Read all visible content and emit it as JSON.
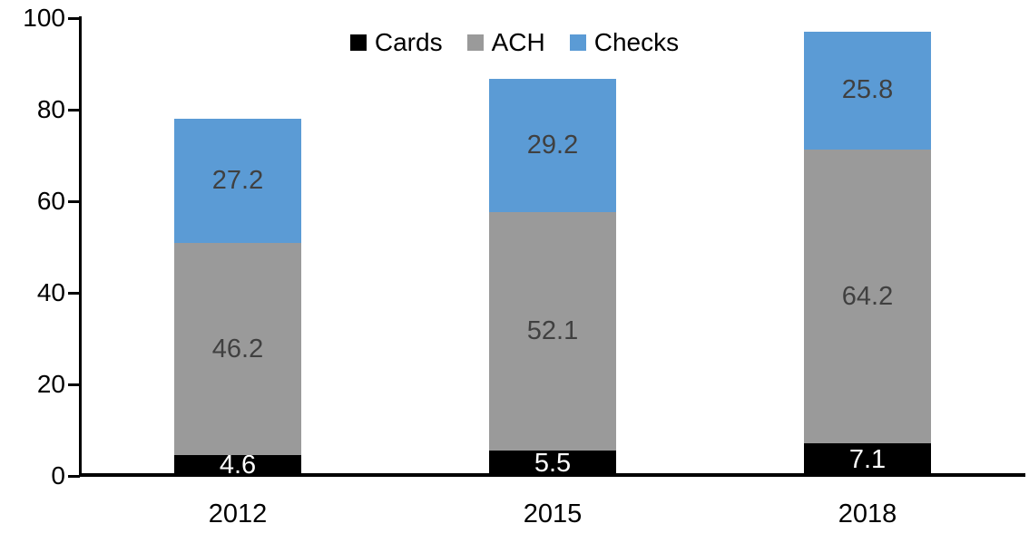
{
  "chart_data": {
    "type": "bar",
    "stacked": true,
    "title": "",
    "xlabel": "",
    "ylabel": "",
    "categories": [
      "2012",
      "2015",
      "2018"
    ],
    "series": [
      {
        "name": "Cards",
        "color": "#000000",
        "label_color": "#ffffff",
        "values": [
          4.6,
          5.5,
          7.1
        ]
      },
      {
        "name": "ACH",
        "color": "#9a9a9a",
        "label_color": "#404040",
        "values": [
          46.2,
          52.1,
          64.2
        ]
      },
      {
        "name": "Checks",
        "color": "#5b9bd5",
        "label_color": "#404040",
        "values": [
          27.2,
          29.2,
          25.8
        ]
      }
    ],
    "totals": [
      78.0,
      86.8,
      97.1
    ],
    "ylim": [
      0,
      100
    ],
    "yticks": [
      0,
      20,
      40,
      60,
      80,
      100
    ],
    "legend_position": "top",
    "grid": false,
    "axis_color": "#000000",
    "background_color": "#ffffff"
  }
}
